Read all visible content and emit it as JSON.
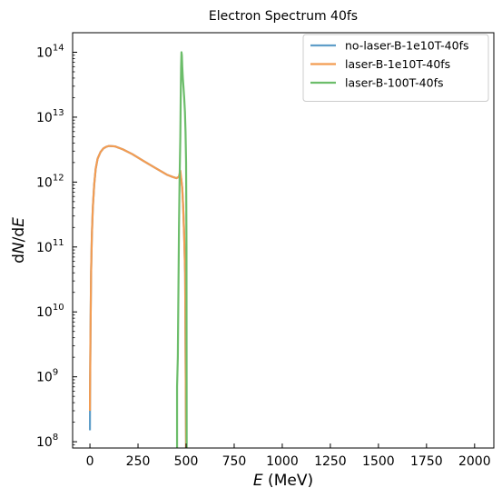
{
  "chart_data": {
    "type": "line",
    "title": "Electron Spectrum 40fs",
    "xlabel": "E (MeV)",
    "xlabel_var": "E",
    "xlabel_unit": " (MeV)",
    "ylabel": "dN/dE",
    "ylabel_parts": [
      "d",
      "N",
      "/d",
      "E"
    ],
    "xlim": [
      -90,
      2100
    ],
    "ylim": [
      80000000,
      200000000000000
    ],
    "yscale": "log",
    "grid": false,
    "legend_position": "top-right",
    "x_ticks": [
      0,
      250,
      500,
      750,
      1000,
      1250,
      1500,
      1750,
      2000
    ],
    "x_tick_labels": [
      "0",
      "250",
      "500",
      "750",
      "1000",
      "1250",
      "1500",
      "1750",
      "2000"
    ],
    "y_ticks": [
      100000000,
      1000000000,
      10000000000,
      100000000000,
      1000000000000,
      10000000000000,
      100000000000000
    ],
    "y_tick_base": "10",
    "y_tick_exponents": [
      "8",
      "9",
      "10",
      "11",
      "12",
      "13",
      "14"
    ],
    "series": [
      {
        "name": "no-laser-B-1e10T-40fs",
        "color": "#5f9ec9",
        "x": [
          0,
          0.5,
          3,
          6,
          10,
          15,
          22,
          30,
          40,
          55,
          70,
          85,
          100,
          130,
          170,
          220,
          280,
          340,
          400,
          430,
          450,
          462,
          470,
          475,
          480,
          485,
          490,
          495,
          500
        ],
        "y": [
          150000000,
          500000000,
          5000000000,
          40000000000,
          150000000000,
          400000000000,
          900000000000,
          1600000000000,
          2300000000000,
          2900000000000,
          3300000000000,
          3500000000000,
          3600000000000,
          3550000000000,
          3200000000000,
          2700000000000,
          2100000000000,
          1650000000000,
          1300000000000,
          1200000000000,
          1150000000000,
          1200000000000,
          1300000000000,
          1100000000000,
          800000000000,
          400000000000,
          150000000000,
          40000000000,
          80000000
        ]
      },
      {
        "name": "laser-B-1e10T-40fs",
        "color": "#f39c52",
        "x": [
          0,
          0.5,
          3,
          6,
          10,
          15,
          22,
          30,
          40,
          55,
          70,
          85,
          100,
          130,
          170,
          220,
          280,
          340,
          400,
          430,
          450,
          462,
          470,
          475,
          480,
          485,
          490,
          495,
          500
        ],
        "y": [
          300000000,
          600000000,
          5000000000,
          40000000000,
          150000000000,
          400000000000,
          900000000000,
          1600000000000,
          2300000000000,
          2900000000000,
          3300000000000,
          3500000000000,
          3600000000000,
          3550000000000,
          3200000000000,
          2700000000000,
          2100000000000,
          1650000000000,
          1300000000000,
          1200000000000,
          1150000000000,
          1200000000000,
          1500000000000,
          1100000000000,
          800000000000,
          400000000000,
          150000000000,
          40000000000,
          80000000
        ]
      },
      {
        "name": "laser-B-100T-40fs",
        "color": "#6cbd6a",
        "x": [
          453,
          453,
          457,
          460,
          463,
          466,
          470,
          472,
          474,
          476,
          478,
          480,
          483,
          486,
          490,
          494,
          497,
          500,
          502,
          503
        ],
        "y": [
          80000000,
          700000000,
          2000000000,
          20000000000,
          200000000000,
          1000000000000,
          5000000000000,
          20000000000000,
          60000000000000,
          100000000000000,
          90000000000000,
          60000000000000,
          40000000000000,
          30000000000000,
          20000000000000,
          12000000000000,
          6000000000000,
          2000000000000,
          100000000000,
          80000000
        ]
      }
    ]
  }
}
